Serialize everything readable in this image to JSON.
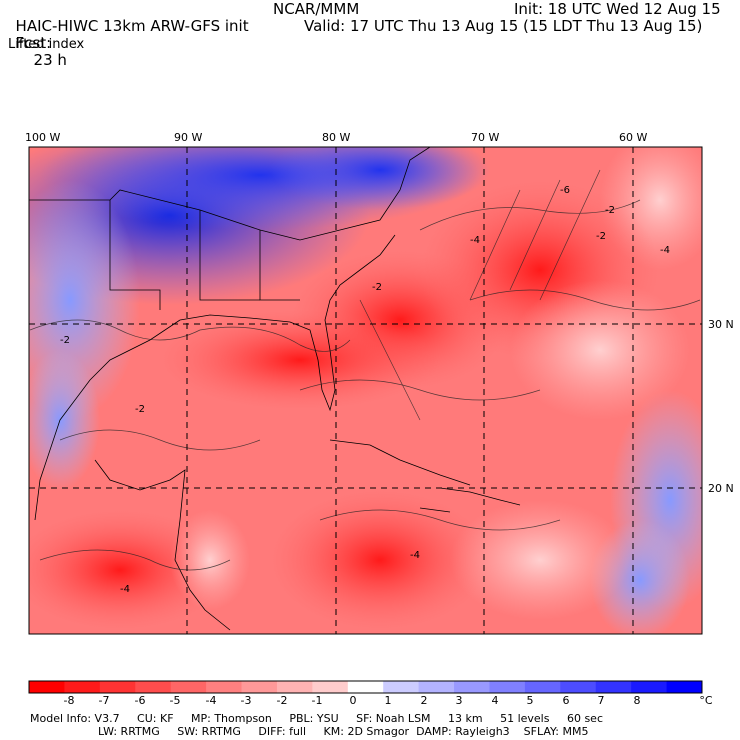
{
  "header": {
    "title": "HAIC-HIWC 13km ARW-GFS init",
    "org": "NCAR/MMM",
    "init": "Init: 18 UTC Wed 12 Aug 15",
    "fcst_label": "Fcst:",
    "fcst_value": "23 h",
    "valid": "Valid: 17 UTC Thu 13 Aug 15 (15 LDT Thu 13 Aug 15)",
    "field": "Lifted index"
  },
  "axes": {
    "lon_labels": [
      "100 W",
      "90 W",
      "80 W",
      "70 W",
      "60 W"
    ],
    "lat_labels": [
      "30 N",
      "20 N"
    ]
  },
  "colorbar": {
    "ticks": [
      "-8",
      "-7",
      "-6",
      "-5",
      "-4",
      "-3",
      "-2",
      "-1",
      "0",
      "1",
      "2",
      "3",
      "4",
      "5",
      "6",
      "7",
      "8"
    ],
    "unit": "°C",
    "colors": [
      "#ff0000",
      "#ff1a1a",
      "#ff3333",
      "#ff4d4d",
      "#ff6666",
      "#ff8080",
      "#ff9999",
      "#ffb3b3",
      "#ffcccc",
      "#ffffff",
      "#ccccff",
      "#b3b3ff",
      "#9999ff",
      "#8080ff",
      "#6666ff",
      "#4d4dff",
      "#3333ff",
      "#1a1aff",
      "#0000ff"
    ]
  },
  "contour_labels": [
    "-2",
    "-4",
    "-6",
    "-2",
    "-4",
    "-2",
    "-4",
    "-2",
    "-4",
    "-2"
  ],
  "footer": {
    "line1": "Model Info: V3.7     CU: KF     MP: Thompson     PBL: YSU     SF: Noah LSM     13 km     51 levels     60 sec",
    "line2": "LW: RRTMG     SW: RRTMG     DIFF: full     KM: 2D Smagor  DAMP: Rayleigh3    SFLAY: MM5"
  }
}
